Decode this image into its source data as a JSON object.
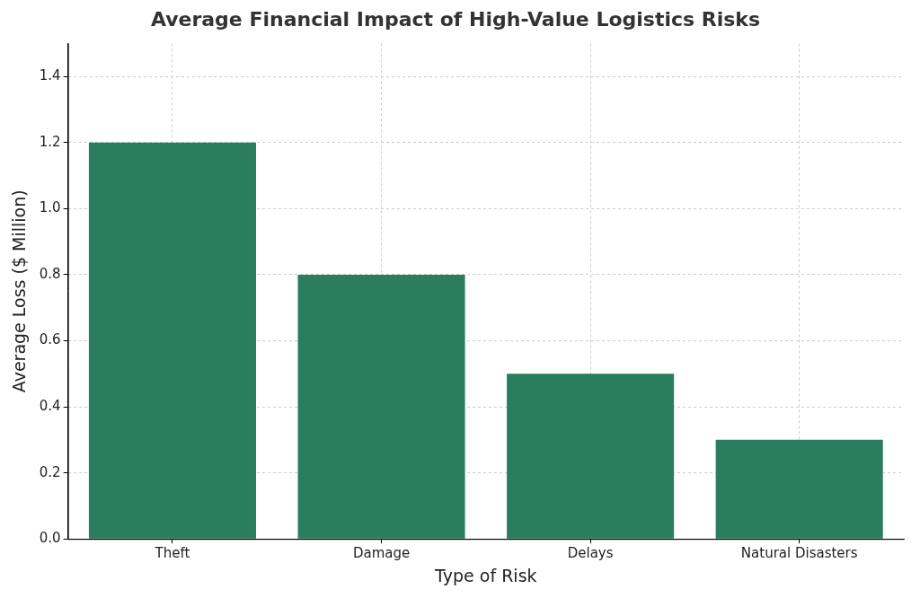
{
  "chart_data": {
    "type": "bar",
    "title": "Average Financial Impact of High-Value Logistics Risks",
    "x_label": "Type of Risk",
    "y_label": "Average Loss ($ Million)",
    "categories": [
      "Theft",
      "Damage",
      "Delays",
      "Natural Disasters"
    ],
    "values": [
      1.2,
      0.8,
      0.5,
      0.3
    ],
    "color": "#2a7d5f",
    "ylim": [
      0,
      1.5
    ],
    "yticks": [
      {
        "value": 0,
        "label": "0.0"
      },
      0.2,
      0.4,
      0.6,
      0.8,
      {
        "value": 1,
        "label": "1.0"
      },
      1.2,
      1.4
    ],
    "grid": true
  }
}
